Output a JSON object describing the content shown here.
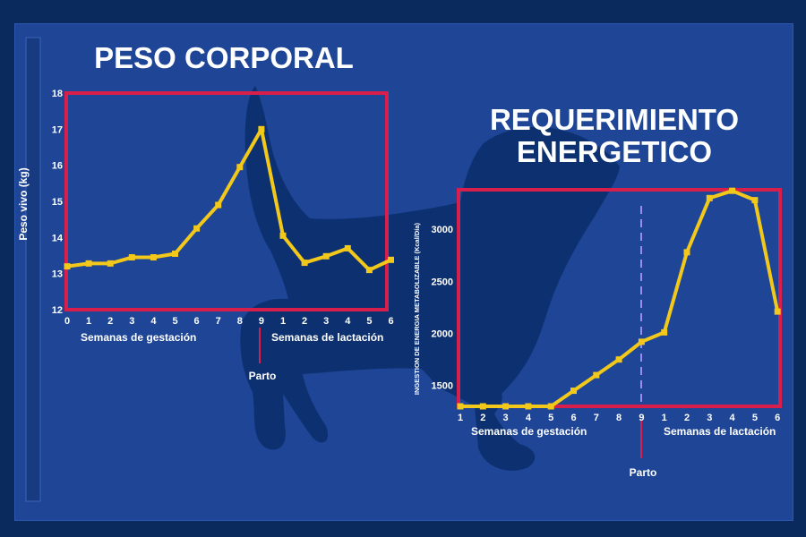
{
  "colors": {
    "background": "#0a2a5e",
    "panel": "#1e4596",
    "silhouette": "#0d3170",
    "frame": "#d81e4a",
    "line": "#f2c81a",
    "text": "#ffffff",
    "parto_dashed": "#9a8cf0"
  },
  "slide": {
    "title_1": "PESO CORPORAL",
    "title_2_line1": "REQUERIMIENTO",
    "title_2_line2": "ENERGETICO"
  },
  "chart_data": [
    {
      "type": "line",
      "title": "PESO CORPORAL",
      "ylabel": "Peso vivo (kg)",
      "xlabel_left": "Semanas de gestación",
      "xlabel_right": "Semanas de lactación",
      "marker_label": "Parto",
      "tick_labels": [
        "0",
        "1",
        "2",
        "3",
        "4",
        "5",
        "6",
        "7",
        "8",
        "9",
        "1",
        "2",
        "3",
        "4",
        "5",
        "6"
      ],
      "ylim": [
        12,
        18
      ],
      "yticks": [
        "12",
        "13",
        "14",
        "15",
        "16",
        "17",
        "18"
      ],
      "series": [
        {
          "values": [
            13.2,
            13.28,
            13.28,
            13.45,
            13.45,
            13.55,
            14.25,
            14.9,
            15.95,
            17.0,
            14.05,
            13.3,
            13.48,
            13.7,
            13.1,
            13.38
          ]
        }
      ]
    },
    {
      "type": "line",
      "title": "REQUERIMIENTO ENERGETICO",
      "ylabel": "INGESTION DE ENERGIA METABOLIZABLE (Kcal/Día)",
      "xlabel_left": "Semanas de gestación",
      "xlabel_right": "Semanas de lactación",
      "marker_label": "Parto",
      "tick_labels": [
        "1",
        "2",
        "3",
        "4",
        "5",
        "6",
        "7",
        "8",
        "9",
        "1",
        "2",
        "3",
        "4",
        "5",
        "6"
      ],
      "ylim": [
        1300,
        3380
      ],
      "yticks": [
        "1500",
        "2000",
        "2500",
        "3000"
      ],
      "series": [
        {
          "points": [
            [
              1,
              1300
            ],
            [
              2,
              1300
            ],
            [
              3,
              1300
            ],
            [
              4,
              1300
            ],
            [
              5,
              1300
            ],
            [
              6,
              1450
            ],
            [
              7,
              1600
            ],
            [
              8,
              1750
            ],
            [
              9,
              1920
            ],
            [
              10,
              2010
            ],
            [
              11,
              2780
            ],
            [
              12,
              3300
            ],
            [
              13,
              3370
            ],
            [
              14,
              3280
            ],
            [
              15,
              2210
            ]
          ]
        }
      ]
    }
  ]
}
